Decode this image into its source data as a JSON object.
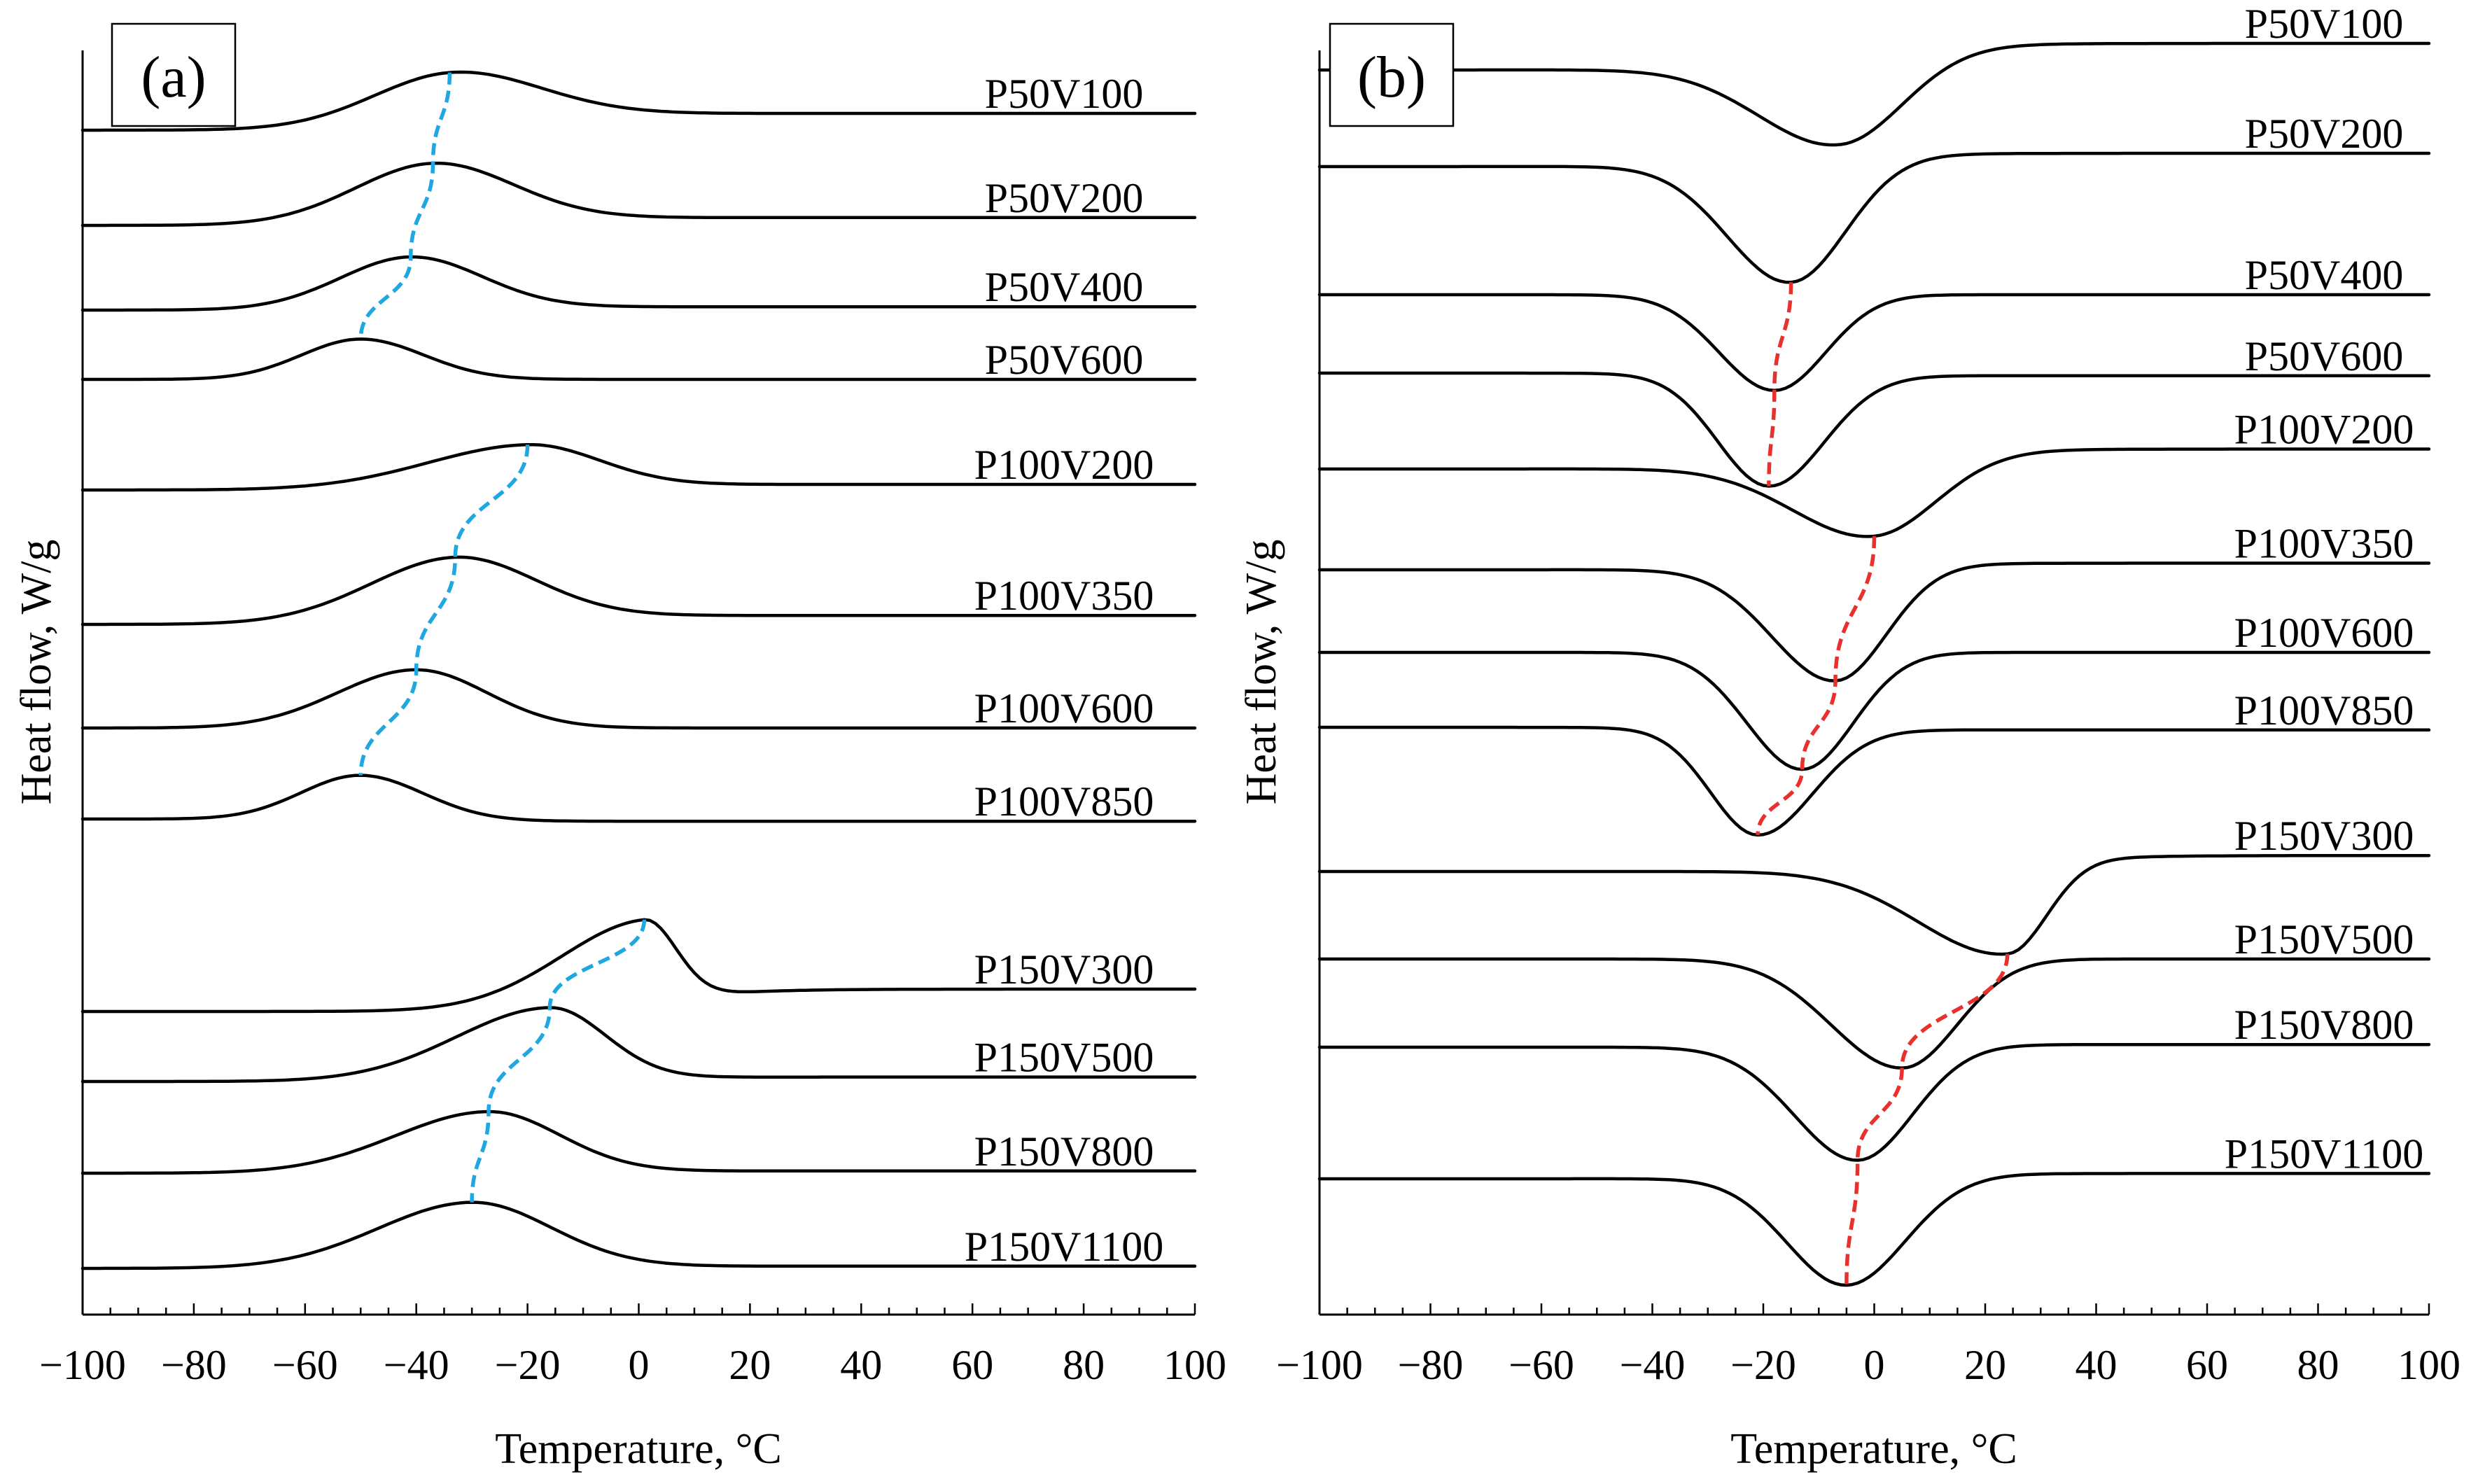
{
  "chart_data": [
    {
      "type": "line",
      "panel_label": "(a)",
      "xlabel": "Temperature, °C",
      "ylabel": "Heat flow, W/g",
      "xlim": [
        -100,
        100
      ],
      "x_ticks": [
        -100,
        -80,
        -60,
        -40,
        -20,
        0,
        20,
        40,
        60,
        80,
        100
      ],
      "x_tick_labels": [
        "−100",
        "−80",
        "−60",
        "−40",
        "−20",
        "0",
        "20",
        "40",
        "60",
        "80",
        "100"
      ],
      "peak_direction": "up",
      "trend_color": "#1ea7e1",
      "series": [
        {
          "name": "P50V100",
          "peak_x": -34,
          "baseline_left": 0.0,
          "baseline_right": 0.15,
          "height": 0.44,
          "width_left": 20,
          "width_right": 22
        },
        {
          "name": "P50V200",
          "peak_x": -37,
          "baseline_left": 0.0,
          "baseline_right": 0.07,
          "height": 0.52,
          "width_left": 20,
          "width_right": 20
        },
        {
          "name": "P50V400",
          "peak_x": -41,
          "baseline_left": 0.0,
          "baseline_right": 0.03,
          "height": 0.46,
          "width_left": 18,
          "width_right": 18
        },
        {
          "name": "P50V600",
          "peak_x": -50,
          "baseline_left": 0.0,
          "baseline_right": 0.0,
          "height": 0.36,
          "width_left": 15,
          "width_right": 16
        },
        {
          "name": "P100V200",
          "peak_x": -20,
          "baseline_left": 0.0,
          "baseline_right": 0.05,
          "height": 0.38,
          "width_left": 26,
          "width_right": 18
        },
        {
          "name": "P100V350",
          "peak_x": -33,
          "baseline_left": 0.0,
          "baseline_right": 0.08,
          "height": 0.56,
          "width_left": 22,
          "width_right": 20
        },
        {
          "name": "P100V600",
          "peak_x": -40,
          "baseline_left": 0.0,
          "baseline_right": 0.0,
          "height": 0.52,
          "width_left": 20,
          "width_right": 18
        },
        {
          "name": "P100V850",
          "peak_x": -50,
          "baseline_left": 0.0,
          "baseline_right": -0.02,
          "height": 0.4,
          "width_left": 15,
          "width_right": 16
        },
        {
          "name": "P150V300",
          "peak_x": 1,
          "baseline_left": 0.0,
          "baseline_right": 0.2,
          "height": 0.72,
          "width_left": 22,
          "width_right": 8
        },
        {
          "name": "P150V500",
          "peak_x": -16,
          "baseline_left": 0.0,
          "baseline_right": 0.04,
          "height": 0.64,
          "width_left": 24,
          "width_right": 14
        },
        {
          "name": "P150V800",
          "peak_x": -27,
          "baseline_left": 0.0,
          "baseline_right": 0.02,
          "height": 0.54,
          "width_left": 24,
          "width_right": 18
        },
        {
          "name": "P150V1100",
          "peak_x": -30,
          "baseline_left": 0.0,
          "baseline_right": 0.02,
          "height": 0.58,
          "width_left": 24,
          "width_right": 20
        }
      ],
      "trend_lines": [
        {
          "series_from": "P50V100",
          "series_to": "P50V600"
        },
        {
          "series_from": "P100V200",
          "series_to": "P100V850"
        },
        {
          "series_from": "P150V300",
          "series_to": "P150V1100"
        }
      ]
    },
    {
      "type": "line",
      "panel_label": "(b)",
      "xlabel": "Temperature, °C",
      "ylabel": "Heat flow, W/g",
      "xlim": [
        -100,
        100
      ],
      "x_ticks": [
        -100,
        -80,
        -60,
        -40,
        -20,
        0,
        20,
        40,
        60,
        80,
        100
      ],
      "x_tick_labels": [
        "−100",
        "−80",
        "−60",
        "−40",
        "−20",
        "0",
        "20",
        "40",
        "60",
        "80",
        "100"
      ],
      "peak_direction": "down",
      "trend_color": "#e8312d",
      "series": [
        {
          "name": "P50V100",
          "peak_x": -6,
          "baseline_left": 0.0,
          "baseline_right": 0.2,
          "height": 0.66,
          "width_left": 20,
          "width_right": 16
        },
        {
          "name": "P50V200",
          "peak_x": -15,
          "baseline_left": 0.0,
          "baseline_right": 0.1,
          "height": 0.92,
          "width_left": 16,
          "width_right": 14
        },
        {
          "name": "P50V400",
          "peak_x": -18,
          "baseline_left": 0.0,
          "baseline_right": 0.0,
          "height": 0.72,
          "width_left": 14,
          "width_right": 13
        },
        {
          "name": "P50V600",
          "peak_x": -19,
          "baseline_left": 0.0,
          "baseline_right": -0.02,
          "height": 0.84,
          "width_left": 13,
          "width_right": 14
        },
        {
          "name": "P100V200",
          "peak_x": 0,
          "baseline_left": 0.0,
          "baseline_right": 0.15,
          "height": 0.58,
          "width_left": 20,
          "width_right": 16
        },
        {
          "name": "P100V350",
          "peak_x": -7,
          "baseline_left": 0.0,
          "baseline_right": 0.05,
          "height": 0.86,
          "width_left": 16,
          "width_right": 13
        },
        {
          "name": "P100V600",
          "peak_x": -13,
          "baseline_left": 0.0,
          "baseline_right": 0.0,
          "height": 0.88,
          "width_left": 14,
          "width_right": 13
        },
        {
          "name": "P100V850",
          "peak_x": -21,
          "baseline_left": 0.0,
          "baseline_right": -0.02,
          "height": 0.8,
          "width_left": 12,
          "width_right": 14
        },
        {
          "name": "P150V300",
          "peak_x": 24,
          "baseline_left": 0.0,
          "baseline_right": 0.12,
          "height": 0.68,
          "width_left": 22,
          "width_right": 10
        },
        {
          "name": "P150V500",
          "peak_x": 5,
          "baseline_left": 0.0,
          "baseline_right": 0.0,
          "height": 0.82,
          "width_left": 18,
          "width_right": 14
        },
        {
          "name": "P150V800",
          "peak_x": -3,
          "baseline_left": 0.0,
          "baseline_right": 0.02,
          "height": 0.86,
          "width_left": 16,
          "width_right": 14
        },
        {
          "name": "P150V1100",
          "peak_x": -5,
          "baseline_left": 0.0,
          "baseline_right": 0.04,
          "height": 0.82,
          "width_left": 15,
          "width_right": 15
        }
      ],
      "trend_lines": [
        {
          "series_from": "P50V200",
          "series_to": "P50V600"
        },
        {
          "series_from": "P100V200",
          "series_to": "P100V850"
        },
        {
          "series_from": "P150V300",
          "series_to": "P150V1100"
        }
      ]
    }
  ]
}
